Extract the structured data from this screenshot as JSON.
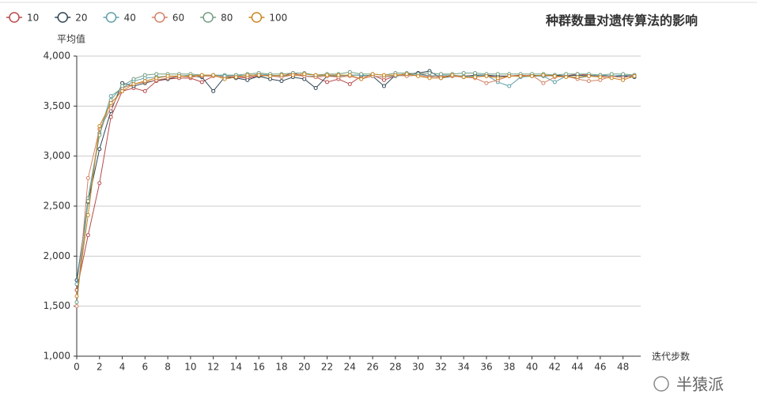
{
  "chart_data": {
    "type": "line",
    "title": "种群数量对遗传算法的影响",
    "y_label": "平均值",
    "x_label": "迭代步数",
    "watermark": "半猿派",
    "x": [
      0,
      1,
      2,
      3,
      4,
      5,
      6,
      7,
      8,
      9,
      10,
      11,
      12,
      13,
      14,
      15,
      16,
      17,
      18,
      19,
      20,
      21,
      22,
      23,
      24,
      25,
      26,
      27,
      28,
      29,
      30,
      31,
      32,
      33,
      34,
      35,
      36,
      37,
      38,
      39,
      40,
      41,
      42,
      43,
      44,
      45,
      46,
      47,
      48,
      49
    ],
    "xlim": [
      0,
      49
    ],
    "xticks": [
      0,
      2,
      4,
      6,
      8,
      10,
      12,
      14,
      16,
      18,
      20,
      22,
      24,
      26,
      28,
      30,
      32,
      34,
      36,
      38,
      40,
      42,
      44,
      46,
      48
    ],
    "ylim": [
      1000,
      4000
    ],
    "yticks": [
      {
        "value": 1000,
        "label": "1,000"
      },
      {
        "value": 1500,
        "label": "1,500"
      },
      {
        "value": 2000,
        "label": "2,000"
      },
      {
        "value": 2500,
        "label": "2,500"
      },
      {
        "value": 3000,
        "label": "3,000"
      },
      {
        "value": 3500,
        "label": "3,500"
      },
      {
        "value": 4000,
        "label": "4,000"
      }
    ],
    "grid": true,
    "legend": "top-left",
    "series": [
      {
        "name": "10",
        "color": "#b84a4c",
        "values": [
          1660,
          2210,
          2730,
          3390,
          3650,
          3680,
          3650,
          3750,
          3770,
          3780,
          3780,
          3740,
          3800,
          3790,
          3790,
          3780,
          3800,
          3810,
          3800,
          3830,
          3800,
          3790,
          3740,
          3770,
          3720,
          3800,
          3810,
          3760,
          3800,
          3820,
          3830,
          3800,
          3790,
          3800,
          3800,
          3810,
          3800,
          3800,
          3800,
          3810,
          3800,
          3810,
          3800,
          3800,
          3820,
          3810,
          3800,
          3800,
          3800,
          3810
        ]
      },
      {
        "name": "20",
        "color": "#2f4554",
        "values": [
          1760,
          2540,
          3070,
          3450,
          3730,
          3700,
          3730,
          3760,
          3770,
          3800,
          3800,
          3790,
          3650,
          3790,
          3780,
          3760,
          3800,
          3770,
          3750,
          3790,
          3770,
          3680,
          3800,
          3800,
          3810,
          3810,
          3800,
          3700,
          3810,
          3820,
          3830,
          3850,
          3780,
          3800,
          3790,
          3810,
          3810,
          3800,
          3800,
          3800,
          3810,
          3800,
          3810,
          3800,
          3810,
          3800,
          3810,
          3800,
          3800,
          3790
        ]
      },
      {
        "name": "40",
        "color": "#61a0a8",
        "values": [
          1720,
          2580,
          3230,
          3600,
          3680,
          3750,
          3780,
          3790,
          3800,
          3800,
          3810,
          3800,
          3810,
          3810,
          3810,
          3800,
          3820,
          3810,
          3800,
          3810,
          3800,
          3800,
          3810,
          3800,
          3810,
          3810,
          3800,
          3790,
          3800,
          3810,
          3820,
          3800,
          3810,
          3810,
          3800,
          3800,
          3810,
          3740,
          3700,
          3790,
          3800,
          3800,
          3740,
          3800,
          3780,
          3800,
          3810,
          3800,
          3810,
          3800
        ]
      },
      {
        "name": "60",
        "color": "#d48265",
        "values": [
          1500,
          2780,
          3270,
          3480,
          3680,
          3720,
          3740,
          3760,
          3780,
          3800,
          3790,
          3800,
          3800,
          3790,
          3800,
          3790,
          3810,
          3800,
          3790,
          3810,
          3800,
          3790,
          3800,
          3790,
          3800,
          3770,
          3800,
          3790,
          3810,
          3800,
          3810,
          3790,
          3800,
          3800,
          3790,
          3780,
          3730,
          3760,
          3800,
          3800,
          3810,
          3730,
          3790,
          3800,
          3770,
          3750,
          3760,
          3800,
          3780,
          3810
        ]
      },
      {
        "name": "80",
        "color": "#749f83",
        "values": [
          1540,
          2550,
          3210,
          3560,
          3700,
          3770,
          3810,
          3820,
          3820,
          3820,
          3820,
          3810,
          3810,
          3800,
          3810,
          3820,
          3830,
          3820,
          3820,
          3830,
          3830,
          3810,
          3820,
          3820,
          3840,
          3820,
          3820,
          3810,
          3830,
          3830,
          3820,
          3830,
          3820,
          3820,
          3830,
          3830,
          3820,
          3820,
          3820,
          3820,
          3820,
          3820,
          3810,
          3820,
          3820,
          3820,
          3810,
          3820,
          3820,
          3810
        ]
      },
      {
        "name": "100",
        "color": "#ca8622",
        "values": [
          1600,
          2410,
          3300,
          3530,
          3650,
          3720,
          3750,
          3780,
          3800,
          3800,
          3800,
          3810,
          3810,
          3770,
          3790,
          3810,
          3810,
          3800,
          3810,
          3810,
          3820,
          3810,
          3810,
          3810,
          3810,
          3770,
          3820,
          3810,
          3810,
          3820,
          3800,
          3780,
          3780,
          3810,
          3790,
          3790,
          3800,
          3780,
          3800,
          3800,
          3800,
          3810,
          3800,
          3790,
          3790,
          3800,
          3790,
          3780,
          3760,
          3800
        ]
      }
    ]
  }
}
